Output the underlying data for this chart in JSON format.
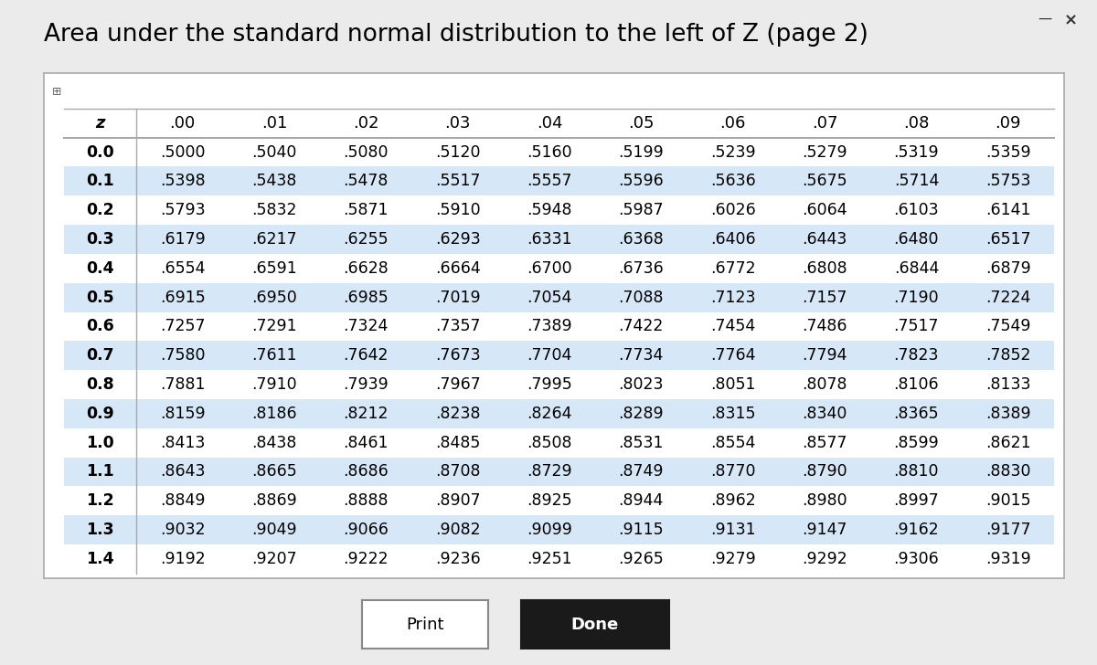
{
  "title": "Area under the standard normal distribution to the left of Z (page 2)",
  "col_headers": [
    "z",
    ".00",
    ".01",
    ".02",
    ".03",
    ".04",
    ".05",
    ".06",
    ".07",
    ".08",
    ".09"
  ],
  "rows": [
    [
      "0.0",
      ".5000",
      ".5040",
      ".5080",
      ".5120",
      ".5160",
      ".5199",
      ".5239",
      ".5279",
      ".5319",
      ".5359"
    ],
    [
      "0.1",
      ".5398",
      ".5438",
      ".5478",
      ".5517",
      ".5557",
      ".5596",
      ".5636",
      ".5675",
      ".5714",
      ".5753"
    ],
    [
      "0.2",
      ".5793",
      ".5832",
      ".5871",
      ".5910",
      ".5948",
      ".5987",
      ".6026",
      ".6064",
      ".6103",
      ".6141"
    ],
    [
      "0.3",
      ".6179",
      ".6217",
      ".6255",
      ".6293",
      ".6331",
      ".6368",
      ".6406",
      ".6443",
      ".6480",
      ".6517"
    ],
    [
      "0.4",
      ".6554",
      ".6591",
      ".6628",
      ".6664",
      ".6700",
      ".6736",
      ".6772",
      ".6808",
      ".6844",
      ".6879"
    ],
    [
      "0.5",
      ".6915",
      ".6950",
      ".6985",
      ".7019",
      ".7054",
      ".7088",
      ".7123",
      ".7157",
      ".7190",
      ".7224"
    ],
    [
      "0.6",
      ".7257",
      ".7291",
      ".7324",
      ".7357",
      ".7389",
      ".7422",
      ".7454",
      ".7486",
      ".7517",
      ".7549"
    ],
    [
      "0.7",
      ".7580",
      ".7611",
      ".7642",
      ".7673",
      ".7704",
      ".7734",
      ".7764",
      ".7794",
      ".7823",
      ".7852"
    ],
    [
      "0.8",
      ".7881",
      ".7910",
      ".7939",
      ".7967",
      ".7995",
      ".8023",
      ".8051",
      ".8078",
      ".8106",
      ".8133"
    ],
    [
      "0.9",
      ".8159",
      ".8186",
      ".8212",
      ".8238",
      ".8264",
      ".8289",
      ".8315",
      ".8340",
      ".8365",
      ".8389"
    ],
    [
      "1.0",
      ".8413",
      ".8438",
      ".8461",
      ".8485",
      ".8508",
      ".8531",
      ".8554",
      ".8577",
      ".8599",
      ".8621"
    ],
    [
      "1.1",
      ".8643",
      ".8665",
      ".8686",
      ".8708",
      ".8729",
      ".8749",
      ".8770",
      ".8790",
      ".8810",
      ".8830"
    ],
    [
      "1.2",
      ".8849",
      ".8869",
      ".8888",
      ".8907",
      ".8925",
      ".8944",
      ".8962",
      ".8980",
      ".8997",
      ".9015"
    ],
    [
      "1.3",
      ".9032",
      ".9049",
      ".9066",
      ".9082",
      ".9099",
      ".9115",
      ".9131",
      ".9147",
      ".9162",
      ".9177"
    ],
    [
      "1.4",
      ".9192",
      ".9207",
      ".9222",
      ".9236",
      ".9251",
      ".9265",
      ".9279",
      ".9292",
      ".9306",
      ".9319"
    ]
  ],
  "shaded_rows": [
    1,
    3,
    5,
    7,
    9,
    11,
    13
  ],
  "shaded_color": "#d6e8f7",
  "text_color": "#000000",
  "border_color": "#aaaaaa",
  "bg_color": "#ffffff",
  "page_bg": "#ebebeb",
  "title_fontsize": 19,
  "table_fontsize": 12.5,
  "header_fontsize": 13,
  "print_btn_text": "Print",
  "done_btn_text": "Done",
  "print_btn_color": "#ffffff",
  "done_btn_color": "#1a1a1a",
  "print_btn_text_color": "#000000",
  "done_btn_text_color": "#ffffff"
}
